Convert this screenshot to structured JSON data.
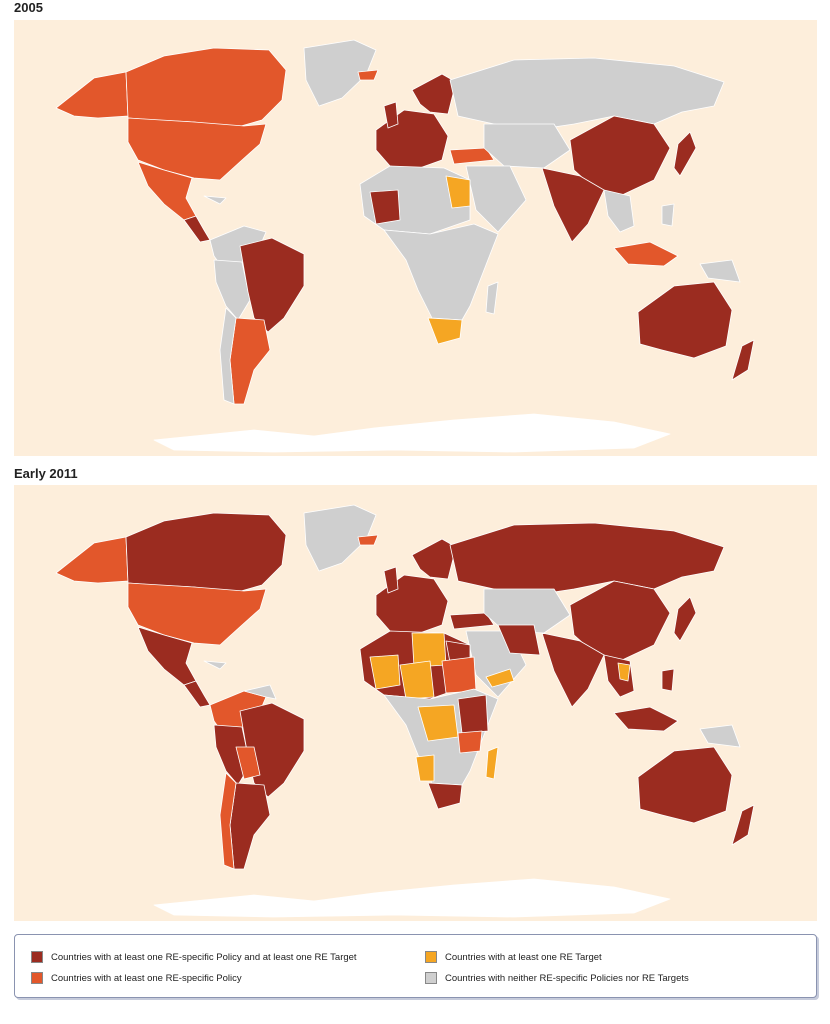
{
  "maps": [
    {
      "title": "2005"
    },
    {
      "title": "Early 2011"
    }
  ],
  "legend": {
    "items": [
      {
        "label": "Countries with at least one RE-specific Policy and at least one RE Target",
        "color": "#9b2c20"
      },
      {
        "label": "Countries with at least one RE-specific Policy",
        "color": "#e2572b"
      },
      {
        "label": "Countries with at least one RE Target",
        "color": "#f5a623"
      },
      {
        "label": "Countries with neither RE-specific Policies nor RE Targets",
        "color": "#cfcfcf"
      }
    ]
  },
  "colors": {
    "ocean": "#fdeedb",
    "no_data": "#ffffff",
    "border": "#ffffff"
  }
}
